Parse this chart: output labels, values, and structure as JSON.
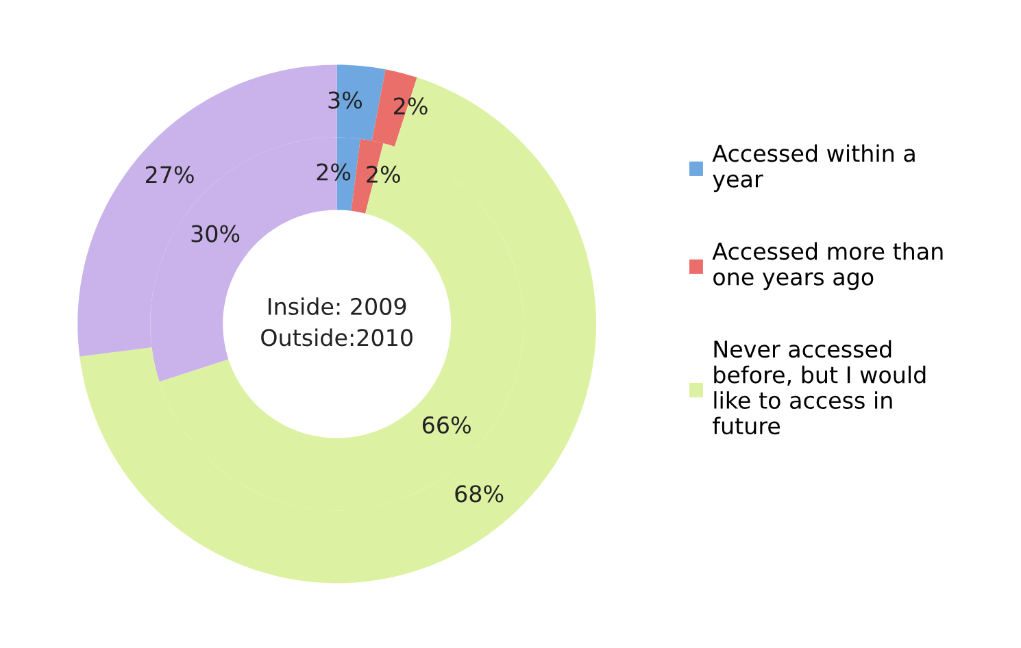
{
  "chart_data": {
    "type": "donut",
    "categories": [
      "Accessed within a year",
      "Accessed more than one years ago",
      "Never accessed before, but I would like to access in future",
      null
    ],
    "colors": [
      "#6fa8e0",
      "#ea6f6a",
      "#dcf2a2",
      "#c9b3ea"
    ],
    "series": [
      {
        "values": [
          2,
          2,
          66,
          30
        ],
        "value_labels": [
          "2%",
          "2%",
          "66%",
          "30%"
        ]
      },
      {
        "values": [
          3,
          2,
          68,
          27
        ],
        "value_labels": [
          "3%",
          "2%",
          "68%",
          "27%"
        ]
      }
    ],
    "legend": "right",
    "annotations": [
      "Inside: 2009",
      "Outside:2010"
    ]
  }
}
